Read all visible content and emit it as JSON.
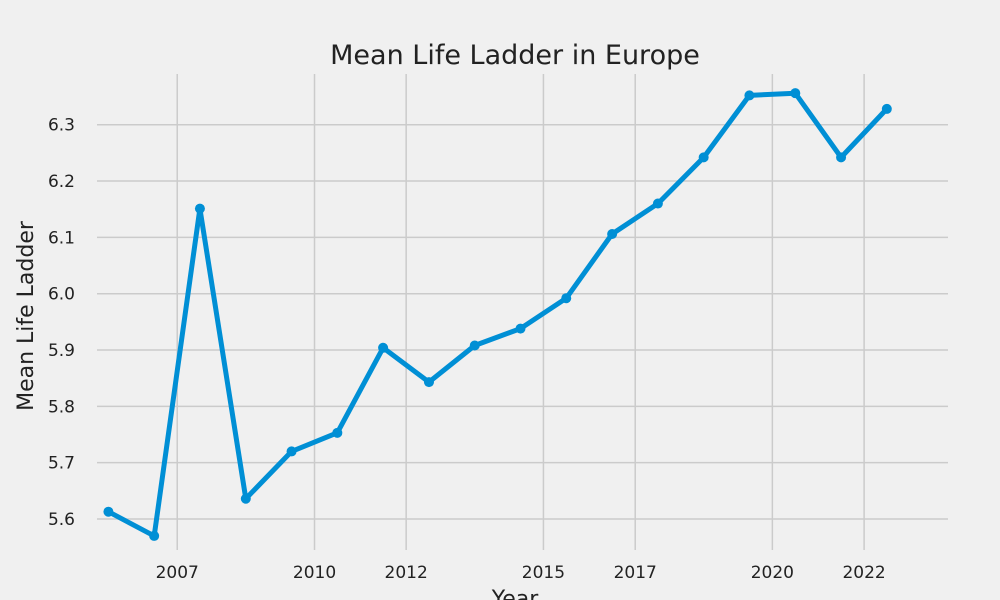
{
  "chart_data": {
    "type": "line",
    "title": "Mean Life Ladder in Europe",
    "xlabel": "Year",
    "ylabel": "Mean Life Ladder",
    "xlim": [
      "2005-04-01",
      "2023-11-01"
    ],
    "ylim": [
      5.545,
      6.39
    ],
    "x_ticks": [
      {
        "date": "2007-01-01",
        "label": "2007"
      },
      {
        "date": "2009-12-31",
        "label": "2010"
      },
      {
        "date": "2012-01-01",
        "label": "2012"
      },
      {
        "date": "2014-12-31",
        "label": "2015"
      },
      {
        "date": "2017-01-01",
        "label": "2017"
      },
      {
        "date": "2019-12-31",
        "label": "2020"
      },
      {
        "date": "2022-01-01",
        "label": "2022"
      }
    ],
    "y_ticks": [
      5.6,
      5.7,
      5.8,
      5.9,
      6.0,
      6.1,
      6.2,
      6.3
    ],
    "grid": true,
    "series": [
      {
        "color": "#008fd5",
        "points": [
          {
            "x": "2005-07-01",
            "y": 5.613
          },
          {
            "x": "2006-07-01",
            "y": 5.57
          },
          {
            "x": "2007-07-01",
            "y": 6.151
          },
          {
            "x": "2008-07-01",
            "y": 5.636
          },
          {
            "x": "2009-07-01",
            "y": 5.72
          },
          {
            "x": "2010-07-01",
            "y": 5.753
          },
          {
            "x": "2011-07-01",
            "y": 5.904
          },
          {
            "x": "2012-07-01",
            "y": 5.843
          },
          {
            "x": "2013-07-01",
            "y": 5.908
          },
          {
            "x": "2014-07-01",
            "y": 5.938
          },
          {
            "x": "2015-07-01",
            "y": 5.992
          },
          {
            "x": "2016-07-01",
            "y": 6.106
          },
          {
            "x": "2017-07-01",
            "y": 6.16
          },
          {
            "x": "2018-07-01",
            "y": 6.242
          },
          {
            "x": "2019-07-01",
            "y": 6.352
          },
          {
            "x": "2020-07-01",
            "y": 6.356
          },
          {
            "x": "2021-07-01",
            "y": 6.242
          },
          {
            "x": "2022-07-01",
            "y": 6.328
          }
        ]
      }
    ]
  }
}
